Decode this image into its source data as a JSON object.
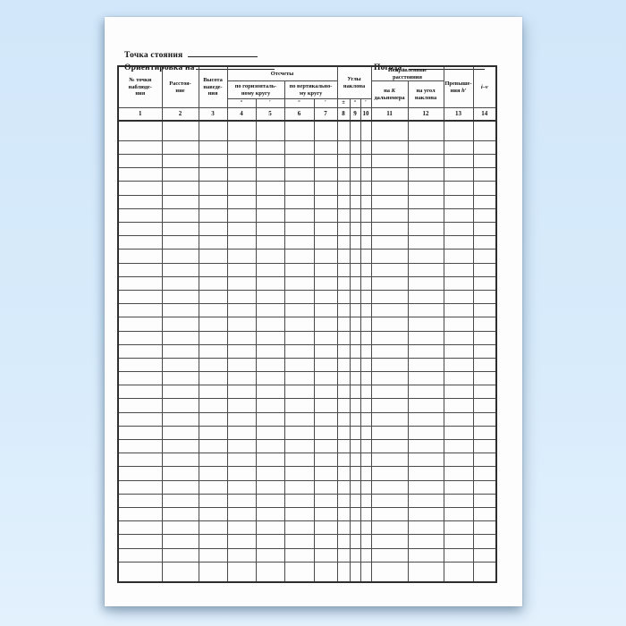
{
  "form": {
    "station_label": "Точка стояния",
    "orientation_label": "Ориентировка на",
    "weather_label": "Погода:"
  },
  "table": {
    "header": {
      "col1": "№ точки\nнаблюде-\nния",
      "col2": "Расстоя-\nние",
      "col3": "Высота\nнаведе-\nния",
      "readings_group": "Отсчеты",
      "horizontal_circle": "по горизонталь-\nному кругу",
      "vertical_circle": "по вертикально-\nму кругу",
      "angles_group": "Углы\nнаклона",
      "corrected_group": "Исправленные\nрасстояния",
      "col11_prefix": "на",
      "col11_symbol": "К",
      "col11_line2": "дальномера",
      "col12": "на угол\nнаклона",
      "col13_text": "Превыше-\nния",
      "col13_symbol": "h′",
      "col14": "i–v",
      "unit_symbols": [
        "°",
        "′",
        "°",
        "′",
        "±",
        "°",
        "′"
      ],
      "column_numbers": [
        "1",
        "2",
        "3",
        "4",
        "5",
        "6",
        "7",
        "8",
        "9",
        "10",
        "11",
        "12",
        "13",
        "14"
      ]
    },
    "body": {
      "row_count": 33,
      "col_count": 14
    }
  },
  "colors": {
    "background_blue": "#d5e9fa",
    "page_white": "#fdfdfd",
    "border_dark": "#2e2e2e",
    "text": "#111111"
  }
}
